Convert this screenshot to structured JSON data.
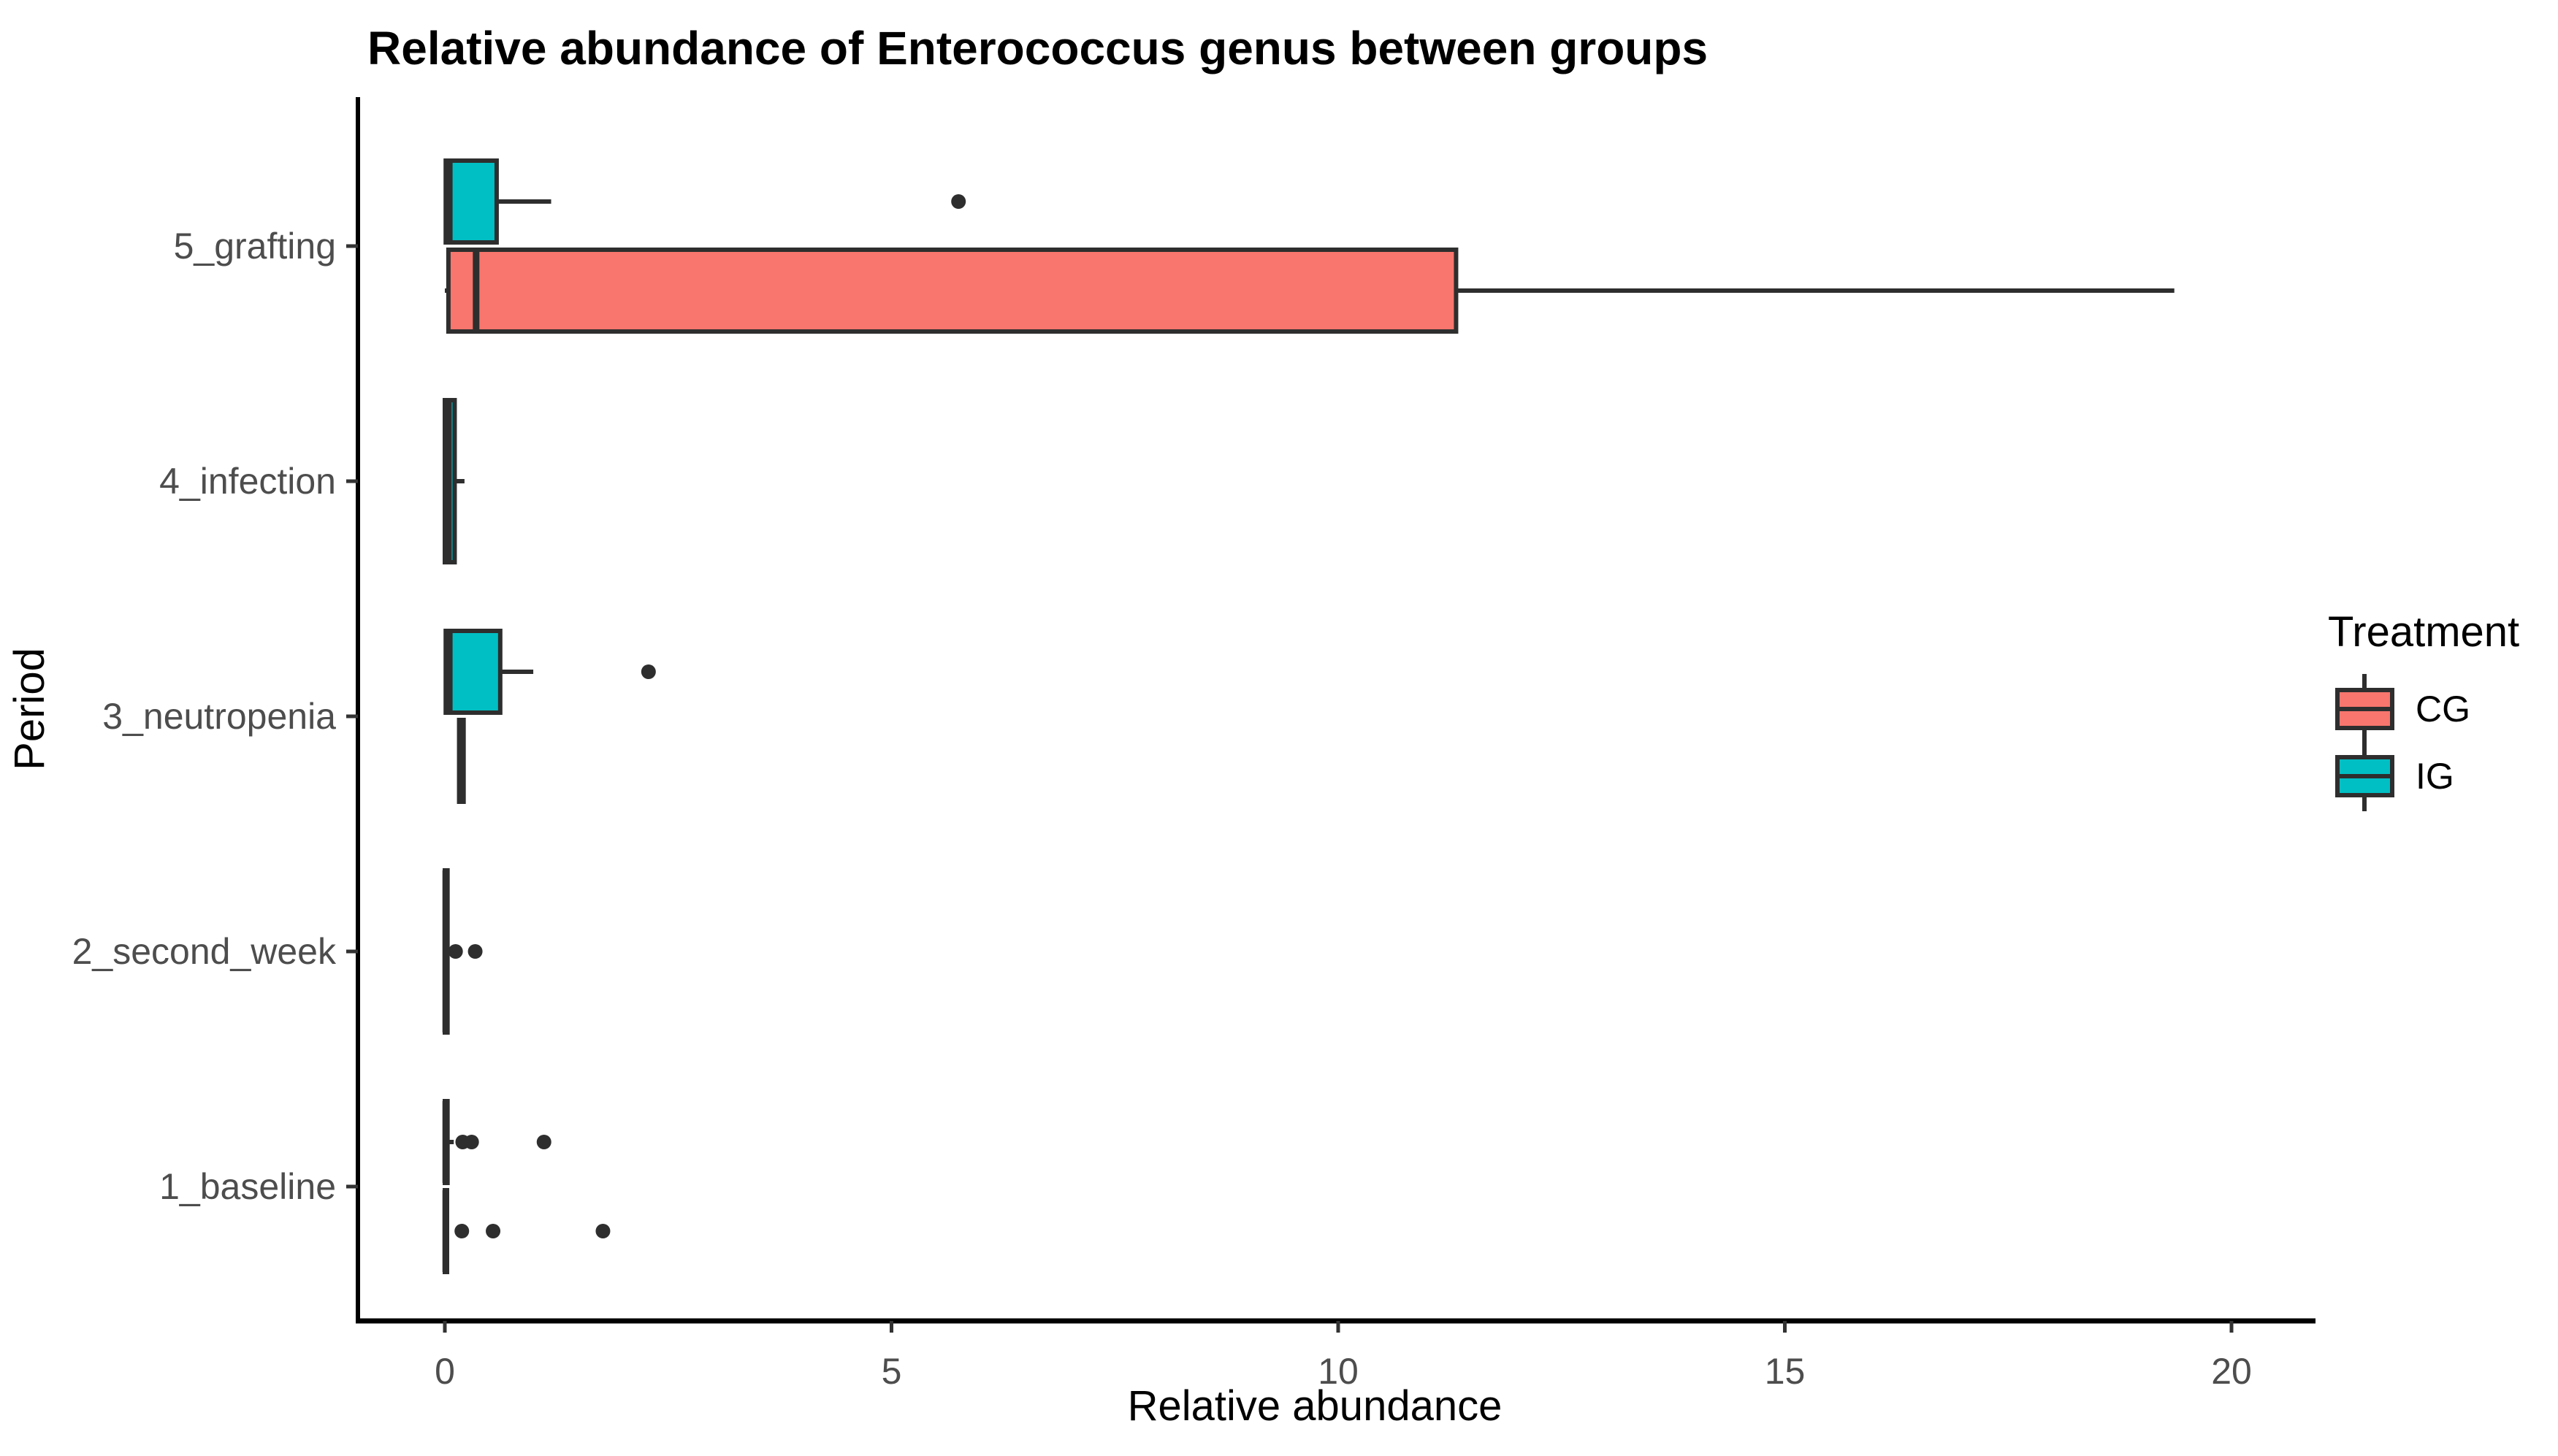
{
  "chart_data": {
    "type": "boxplot",
    "orientation": "horizontal",
    "title": "Relative abundance of Enterococcus genus between groups",
    "xlabel": "Relative abundance",
    "ylabel": "Period",
    "xlim": [
      0,
      20
    ],
    "xticks": [
      0,
      5,
      10,
      15,
      20
    ],
    "grid": false,
    "categories": [
      "5_grafting",
      "4_infection",
      "3_neutropenia",
      "2_second_week",
      "1_baseline"
    ],
    "legend": {
      "title": "Treatment",
      "position": "right",
      "entries": [
        {
          "label": "CG",
          "color": "#F8766D"
        },
        {
          "label": "IG",
          "color": "#00BFC4"
        }
      ]
    },
    "series": [
      {
        "name": "CG",
        "color": "#F8766D",
        "boxes": {
          "5_grafting": {
            "low": 0,
            "q1": 0.04,
            "median": 0.35,
            "q3": 11.32,
            "high": 19.36,
            "outliers": []
          },
          "3_neutropenia": {
            "low": 0.15,
            "q1": 0.16,
            "median": 0.18,
            "q3": 0.21,
            "high": 0.22,
            "outliers": []
          },
          "1_baseline": {
            "low": 0,
            "q1": 0,
            "median": 0.01,
            "q3": 0.02,
            "high": 0.03,
            "outliers": [
              0.19,
              0.54,
              1.77
            ]
          }
        }
      },
      {
        "name": "IG",
        "color": "#00BFC4",
        "boxes": {
          "5_grafting": {
            "low": 0,
            "q1": 0.01,
            "median": 0.05,
            "q3": 0.58,
            "high": 1.19,
            "outliers": [
              5.75
            ]
          },
          "4_infection": {
            "low": 0,
            "q1": 0,
            "median": 0.04,
            "q3": 0.11,
            "high": 0.22,
            "outliers": []
          },
          "3_neutropenia": {
            "low": 0,
            "q1": 0.01,
            "median": 0.05,
            "q3": 0.62,
            "high": 0.99,
            "outliers": [
              2.28
            ]
          },
          "2_second_week": {
            "low": 0,
            "q1": 0,
            "median": 0.01,
            "q3": 0.03,
            "high": 0.03,
            "outliers": [
              0.12,
              0.34
            ]
          },
          "1_baseline": {
            "low": 0,
            "q1": 0,
            "median": 0.01,
            "q3": 0.03,
            "high": 0.1,
            "outliers": [
              0.2,
              0.3,
              1.11
            ]
          }
        }
      }
    ],
    "colors": {
      "box_border": "#2E2E2E",
      "outlier": "#2E2E2E",
      "axis_line": "#000000",
      "tick": "#333333",
      "tick_label": "#4D4D4D",
      "background": "#FFFFFF"
    }
  }
}
